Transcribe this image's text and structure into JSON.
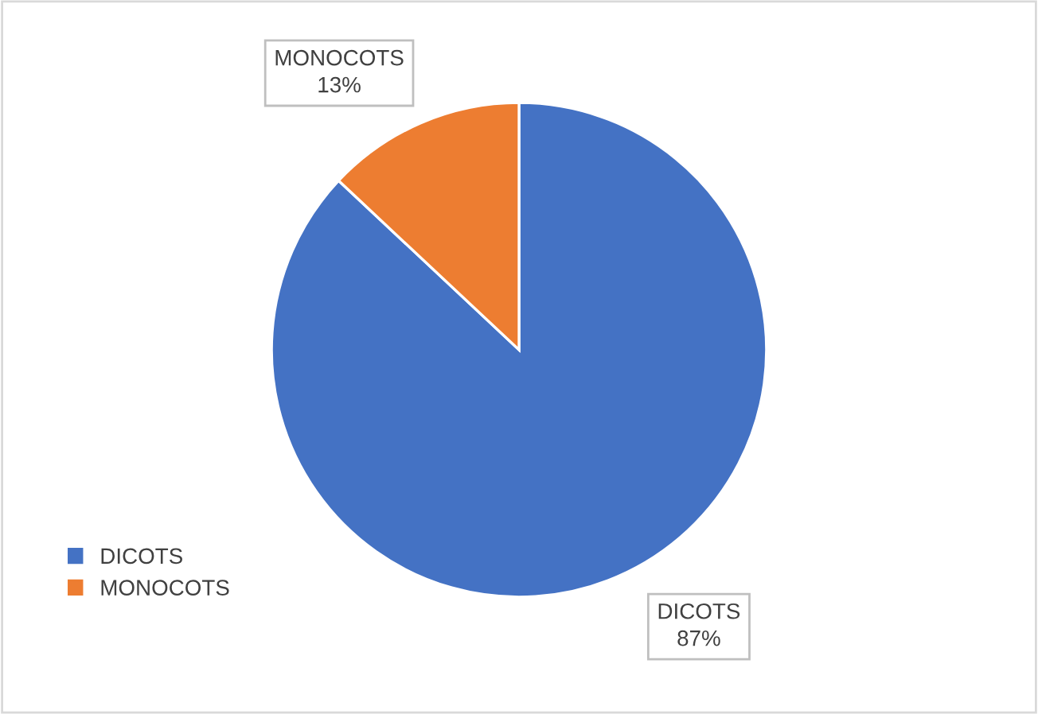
{
  "chart_data": {
    "type": "pie",
    "categories": [
      "DICOTS",
      "MONOCOTS"
    ],
    "values": [
      87,
      13
    ],
    "value_labels": [
      "87%",
      "13%"
    ],
    "colors": [
      "#4472c4",
      "#ed7d31"
    ],
    "legend": "bottom left"
  }
}
